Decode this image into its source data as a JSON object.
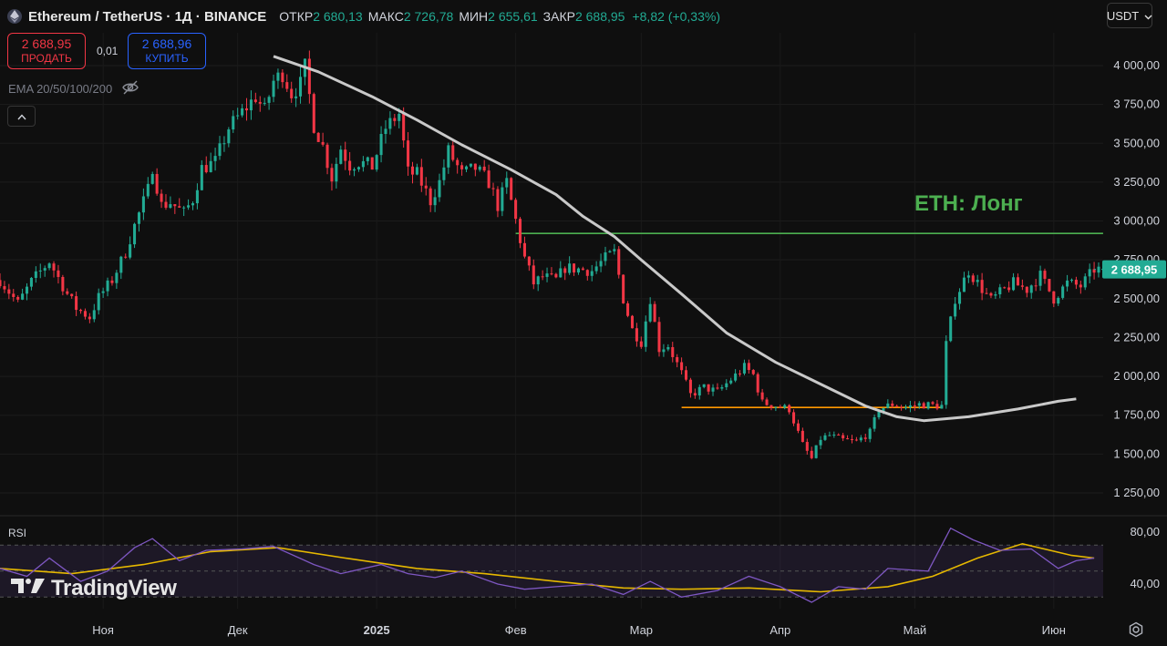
{
  "header": {
    "title": "Ethereum / TetherUS · 1Д · BINANCE",
    "open_label": "ОТКР",
    "open": "2 680,13",
    "high_label": "МАКС",
    "high": "2 726,78",
    "low_label": "МИН",
    "low": "2 655,61",
    "close_label": "ЗАКР",
    "close": "2 688,95",
    "change": "+8,82 (+0,33%)"
  },
  "currency": "USDT",
  "trade": {
    "sell_price": "2 688,95",
    "sell_label": "ПРОДАТЬ",
    "spread": "0,01",
    "buy_price": "2 688,96",
    "buy_label": "КУПИТЬ"
  },
  "indicator_label": "EMA 20/50/100/200",
  "rsi_label": "RSI",
  "logo_text": "TradingView",
  "colors": {
    "up": "#22ab94",
    "down": "#f23645",
    "ema": "#c9c9c9",
    "target": "#4caf50",
    "support": "#ff9800",
    "rsi": "#7e57c2",
    "rsi_ma": "#e6b800",
    "price_tag": "#22ab94"
  },
  "chart_data": [
    {
      "type": "candlestick",
      "title": "",
      "annotation": "ETH: Лонг",
      "price_tag": "2 688,95",
      "y_ticks": [
        "4 000,00",
        "3 750,00",
        "3 500,00",
        "3 250,00",
        "3 000,00",
        "2 750,00",
        "2 500,00",
        "2 250,00",
        "2 000,00",
        "1 750,00",
        "1 500,00",
        "1 250,00"
      ],
      "y_tick_values": [
        4000,
        3750,
        3500,
        3250,
        3000,
        2750,
        2500,
        2250,
        2000,
        1750,
        1500,
        1250
      ],
      "ylim": [
        1130,
        4150
      ],
      "x_ticks": [
        "Ноя",
        "Дек",
        "2025",
        "Фев",
        "Мар",
        "Апр",
        "Май",
        "Июн"
      ],
      "x_tick_dates": [
        "2024-11-01",
        "2024-12-01",
        "2025-01-01",
        "2025-02-01",
        "2025-03-01",
        "2025-04-01",
        "2025-05-01",
        "2025-06-01"
      ],
      "x_range": [
        "2024-10-09",
        "2025-06-11"
      ],
      "grid": true,
      "price_path": [
        [
          "2024-10-09",
          2620
        ],
        [
          "2024-10-13",
          2470
        ],
        [
          "2024-10-16",
          2610
        ],
        [
          "2024-10-20",
          2740
        ],
        [
          "2024-10-24",
          2530
        ],
        [
          "2024-10-26",
          2440
        ],
        [
          "2024-10-29",
          2380
        ],
        [
          "2024-10-31",
          2510
        ],
        [
          "2024-11-03",
          2620
        ],
        [
          "2024-11-06",
          2800
        ],
        [
          "2024-11-08",
          2970
        ],
        [
          "2024-11-11",
          3200
        ],
        [
          "2024-11-12",
          3350
        ],
        [
          "2024-11-14",
          3100
        ],
        [
          "2024-11-16",
          3120
        ],
        [
          "2024-11-19",
          3050
        ],
        [
          "2024-11-21",
          3140
        ],
        [
          "2024-11-23",
          3340
        ],
        [
          "2024-11-26",
          3380
        ],
        [
          "2024-11-29",
          3600
        ],
        [
          "2024-12-02",
          3700
        ],
        [
          "2024-12-05",
          3800
        ],
        [
          "2024-12-07",
          3710
        ],
        [
          "2024-12-09",
          3900
        ],
        [
          "2024-12-11",
          3950
        ],
        [
          "2024-12-13",
          3820
        ],
        [
          "2024-12-15",
          3880
        ],
        [
          "2024-12-16",
          3990
        ],
        [
          "2024-12-18",
          3620
        ],
        [
          "2024-12-20",
          3480
        ],
        [
          "2024-12-22",
          3280
        ],
        [
          "2024-12-24",
          3470
        ],
        [
          "2024-12-26",
          3360
        ],
        [
          "2024-12-28",
          3380
        ],
        [
          "2024-12-31",
          3350
        ],
        [
          "2025-01-03",
          3600
        ],
        [
          "2025-01-06",
          3690
        ],
        [
          "2025-01-08",
          3310
        ],
        [
          "2025-01-10",
          3300
        ],
        [
          "2025-01-13",
          3130
        ],
        [
          "2025-01-15",
          3250
        ],
        [
          "2025-01-17",
          3450
        ],
        [
          "2025-01-20",
          3300
        ],
        [
          "2025-01-23",
          3340
        ],
        [
          "2025-01-26",
          3250
        ],
        [
          "2025-01-28",
          3100
        ],
        [
          "2025-01-30",
          3250
        ],
        [
          "2025-02-02",
          2880
        ],
        [
          "2025-02-03",
          2760
        ],
        [
          "2025-02-05",
          2600
        ],
        [
          "2025-02-07",
          2640
        ],
        [
          "2025-02-10",
          2620
        ],
        [
          "2025-02-12",
          2700
        ],
        [
          "2025-02-15",
          2690
        ],
        [
          "2025-02-18",
          2680
        ],
        [
          "2025-02-21",
          2760
        ],
        [
          "2025-02-23",
          2800
        ],
        [
          "2025-02-25",
          2500
        ],
        [
          "2025-02-27",
          2300
        ],
        [
          "2025-03-01",
          2220
        ],
        [
          "2025-03-03",
          2500
        ],
        [
          "2025-03-05",
          2180
        ],
        [
          "2025-03-07",
          2200
        ],
        [
          "2025-03-10",
          2020
        ],
        [
          "2025-03-12",
          1880
        ],
        [
          "2025-03-15",
          1930
        ],
        [
          "2025-03-18",
          1900
        ],
        [
          "2025-03-21",
          1980
        ],
        [
          "2025-03-24",
          2060
        ],
        [
          "2025-03-26",
          2010
        ],
        [
          "2025-03-28",
          1830
        ],
        [
          "2025-03-31",
          1810
        ],
        [
          "2025-04-03",
          1790
        ],
        [
          "2025-04-06",
          1560
        ],
        [
          "2025-04-08",
          1470
        ],
        [
          "2025-04-10",
          1600
        ],
        [
          "2025-04-12",
          1620
        ],
        [
          "2025-04-15",
          1590
        ],
        [
          "2025-04-18",
          1580
        ],
        [
          "2025-04-21",
          1640
        ],
        [
          "2025-04-23",
          1790
        ],
        [
          "2025-04-26",
          1820
        ],
        [
          "2025-04-29",
          1800
        ],
        [
          "2025-05-02",
          1820
        ],
        [
          "2025-05-07",
          1810
        ],
        [
          "2025-05-08",
          2210
        ],
        [
          "2025-05-10",
          2500
        ],
        [
          "2025-05-13",
          2680
        ],
        [
          "2025-05-15",
          2600
        ],
        [
          "2025-05-18",
          2490
        ],
        [
          "2025-05-21",
          2560
        ],
        [
          "2025-05-23",
          2600
        ],
        [
          "2025-05-26",
          2560
        ],
        [
          "2025-05-29",
          2650
        ],
        [
          "2025-06-01",
          2500
        ],
        [
          "2025-06-04",
          2600
        ],
        [
          "2025-06-07",
          2580
        ],
        [
          "2025-06-10",
          2689
        ]
      ],
      "ema_line": [
        [
          "2024-12-09",
          4060
        ],
        [
          "2024-12-19",
          3960
        ],
        [
          "2024-12-31",
          3800
        ],
        [
          "2025-01-10",
          3650
        ],
        [
          "2025-01-20",
          3490
        ],
        [
          "2025-01-31",
          3330
        ],
        [
          "2025-02-10",
          3170
        ],
        [
          "2025-02-16",
          3030
        ],
        [
          "2025-02-23",
          2900
        ],
        [
          "2025-03-01",
          2750
        ],
        [
          "2025-03-10",
          2530
        ],
        [
          "2025-03-20",
          2280
        ],
        [
          "2025-03-31",
          2090
        ],
        [
          "2025-04-10",
          1950
        ],
        [
          "2025-04-20",
          1810
        ],
        [
          "2025-04-27",
          1740
        ],
        [
          "2025-05-03",
          1715
        ],
        [
          "2025-05-13",
          1740
        ],
        [
          "2025-05-24",
          1790
        ],
        [
          "2025-06-02",
          1840
        ],
        [
          "2025-06-06",
          1855
        ]
      ],
      "target_level": {
        "value": 2920,
        "from": "2025-02-01",
        "to": "2025-06-12"
      },
      "support_level": {
        "value": 1800,
        "from": "2025-03-10",
        "to": "2025-05-07"
      }
    },
    {
      "type": "line",
      "title": "",
      "y_ticks": [
        "80,00",
        "40,00"
      ],
      "y_tick_values": [
        80,
        40
      ],
      "ylim": [
        20,
        90
      ],
      "bands": [
        70,
        50,
        30
      ],
      "rsi": [
        [
          "2024-10-09",
          52
        ],
        [
          "2024-10-15",
          46
        ],
        [
          "2024-10-20",
          60
        ],
        [
          "2024-10-27",
          42
        ],
        [
          "2024-11-02",
          50
        ],
        [
          "2024-11-08",
          68
        ],
        [
          "2024-11-12",
          75
        ],
        [
          "2024-11-18",
          58
        ],
        [
          "2024-11-24",
          66
        ],
        [
          "2024-12-02",
          67
        ],
        [
          "2024-12-09",
          69
        ],
        [
          "2024-12-18",
          55
        ],
        [
          "2024-12-24",
          48
        ],
        [
          "2025-01-02",
          55
        ],
        [
          "2025-01-08",
          48
        ],
        [
          "2025-01-14",
          45
        ],
        [
          "2025-01-20",
          50
        ],
        [
          "2025-01-28",
          40
        ],
        [
          "2025-02-03",
          36
        ],
        [
          "2025-02-10",
          38
        ],
        [
          "2025-02-18",
          40
        ],
        [
          "2025-02-25",
          32
        ],
        [
          "2025-03-03",
          42
        ],
        [
          "2025-03-10",
          30
        ],
        [
          "2025-03-18",
          35
        ],
        [
          "2025-03-25",
          46
        ],
        [
          "2025-04-01",
          38
        ],
        [
          "2025-04-08",
          26
        ],
        [
          "2025-04-14",
          38
        ],
        [
          "2025-04-20",
          36
        ],
        [
          "2025-04-25",
          52
        ],
        [
          "2025-05-04",
          50
        ],
        [
          "2025-05-09",
          83
        ],
        [
          "2025-05-14",
          74
        ],
        [
          "2025-05-20",
          66
        ],
        [
          "2025-05-27",
          67
        ],
        [
          "2025-06-02",
          52
        ],
        [
          "2025-06-06",
          58
        ],
        [
          "2025-06-10",
          60
        ]
      ],
      "rsi_ma": [
        [
          "2024-10-09",
          52
        ],
        [
          "2024-10-25",
          48
        ],
        [
          "2024-11-10",
          55
        ],
        [
          "2024-11-25",
          65
        ],
        [
          "2024-12-10",
          68
        ],
        [
          "2024-12-25",
          60
        ],
        [
          "2025-01-10",
          52
        ],
        [
          "2025-01-25",
          48
        ],
        [
          "2025-02-10",
          42
        ],
        [
          "2025-02-25",
          37
        ],
        [
          "2025-03-10",
          36
        ],
        [
          "2025-03-25",
          37
        ],
        [
          "2025-04-10",
          34
        ],
        [
          "2025-04-25",
          38
        ],
        [
          "2025-05-05",
          46
        ],
        [
          "2025-05-15",
          60
        ],
        [
          "2025-05-25",
          71
        ],
        [
          "2025-06-05",
          62
        ],
        [
          "2025-06-10",
          60
        ]
      ]
    }
  ]
}
